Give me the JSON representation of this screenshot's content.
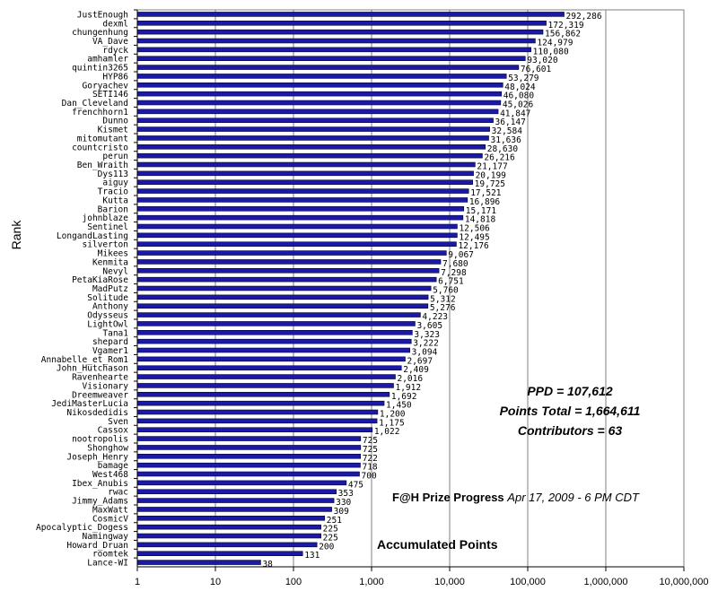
{
  "chart_data": {
    "type": "bar",
    "orientation": "horizontal",
    "xscale": "log",
    "xlim": [
      1,
      10000000
    ],
    "ylabel": "Rank",
    "xlabel": "Accumulated Points",
    "xtick_labels": [
      "1",
      "10",
      "100",
      "1,000",
      "10,000",
      "100,000",
      "1,000,000",
      "10,000,000"
    ],
    "bar_color": "#1a1aa6",
    "grid": "vertical major gridlines",
    "categories": [
      "JustEnough",
      "dexml",
      "chungenhung",
      "VA_Dave",
      "rdyck",
      "amhamler",
      "quintin3265",
      "HYP86",
      "Goryachev",
      "SETI146",
      "Dan_Cleveland",
      "frenchhorn1",
      "Dunno",
      "Kismet",
      "mitomutant",
      "countcristo",
      "perun",
      "Ben_Wraith",
      "Dys113",
      "aiguy",
      "Tracio",
      "Kutta",
      "Barion",
      "johnblaze",
      "Sentinel",
      "LongandLasting",
      "silverton",
      "Mikees",
      "Kenmita",
      "Nevyl",
      "PetaKiaRose",
      "MadPutz",
      "Solitude",
      "Anthony",
      "Odysseus",
      "LightOwl",
      "Tana1",
      "shepard",
      "Vgamer1",
      "Annabelle_et_Rom1",
      "John_Hutchason",
      "Ravenhearte",
      "Visionary",
      "Dreemweaver",
      "JediMasterLucia",
      "Nikosdedidis",
      "Sven",
      "Cassox",
      "nootropolis",
      "Shonghow",
      "Joseph_Henry",
      "bamage",
      "West468",
      "Ibex_Anubis",
      "rwac",
      "Jimmy_Adams",
      "MaxWatt",
      "CosmicV",
      "Apocalyptic_Dogess",
      "Namingway",
      "Howard_Druan",
      "roomtek",
      "Lance-WI"
    ],
    "values": [
      292286,
      172319,
      156862,
      124979,
      110080,
      93020,
      76601,
      53279,
      48024,
      46080,
      45026,
      41847,
      36147,
      32584,
      31636,
      28630,
      26216,
      21177,
      20199,
      19725,
      17521,
      16896,
      15171,
      14818,
      12506,
      12495,
      12176,
      9067,
      7680,
      7298,
      6751,
      5760,
      5312,
      5276,
      4223,
      3605,
      3323,
      3222,
      3094,
      2697,
      2409,
      2016,
      1912,
      1692,
      1450,
      1200,
      1175,
      1022,
      725,
      725,
      722,
      718,
      700,
      475,
      353,
      330,
      309,
      251,
      225,
      225,
      200,
      131,
      38
    ],
    "value_labels": [
      "292,286",
      "172,319",
      "156,862",
      "124,979",
      "110,080",
      "93,020",
      "76,601",
      "53,279",
      "48,024",
      "46,080",
      "45,026",
      "41,847",
      "36,147",
      "32,584",
      "31,636",
      "28,630",
      "26,216",
      "21,177",
      "20,199",
      "19,725",
      "17,521",
      "16,896",
      "15,171",
      "14,818",
      "12,506",
      "12,495",
      "12,176",
      "9,067",
      "7,680",
      "7,298",
      "6,751",
      "5,760",
      "5,312",
      "5,276",
      "4,223",
      "3,605",
      "3,323",
      "3,222",
      "3,094",
      "2,697",
      "2,409",
      "2,016",
      "1,912",
      "1,692",
      "1,450",
      "1,200",
      "1,175",
      "1,022",
      "725",
      "725",
      "722",
      "718",
      "700",
      "475",
      "353",
      "330",
      "309",
      "251",
      "225",
      "225",
      "200",
      "131",
      "38"
    ]
  },
  "stats": {
    "ppd": "PPD = 107,612",
    "points_total": "Points Total = 1,664,611",
    "contributors": "Contributors = 63"
  },
  "caption": {
    "title": "F@H Prize Progress",
    "date": "Apr 17, 2009 - 6 PM CDT"
  }
}
